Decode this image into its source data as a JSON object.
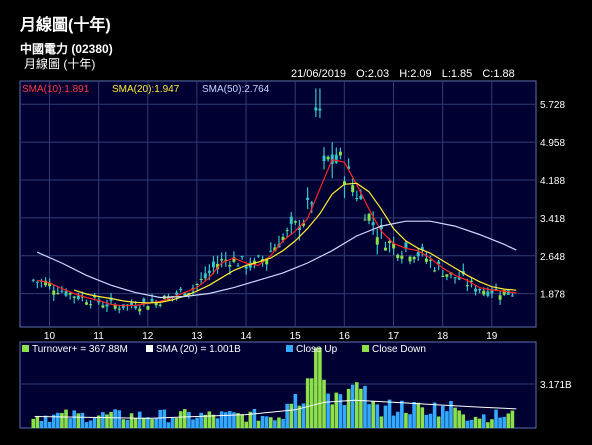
{
  "header": {
    "title": "月線圖(十年)",
    "stock": "中國電力 (02380)",
    "period": "月線圖 (十年)"
  },
  "ohlc": {
    "date": "21/06/2019",
    "open": "O:2.03",
    "high": "H:2.09",
    "low": "L:1.85",
    "close": "C:1.88"
  },
  "colors": {
    "panel_bg": "#000033",
    "grid": "#303c74",
    "price_bar": "#34c6c6",
    "up_vol": "#33a9ff",
    "down_vol": "#8ce04a",
    "sma10": "#ff2222",
    "sma20": "#ffee33",
    "sma50": "#cfd8ff"
  },
  "chart_data": [
    {
      "type": "line",
      "legend": [
        {
          "label": "SMA(10):1.891",
          "color": "#ff3b3b"
        },
        {
          "label": "SMA(20):1.947",
          "color": "#ffeb33"
        },
        {
          "label": "SMA(50):2.764",
          "color": "#c9d6ff"
        }
      ],
      "x_ticks": [
        "10",
        "11",
        "12",
        "13",
        "14",
        "15",
        "16",
        "17",
        "18",
        "19"
      ],
      "y_ticks": [
        "1.878",
        "2.648",
        "3.418",
        "4.188",
        "4.958",
        "5.728"
      ],
      "ylim": [
        1.2,
        6.2
      ],
      "y_scale": "linear",
      "grid": true,
      "series": [
        {
          "name": "SMA(10)",
          "values": [
            [
              2009.75,
              2.15
            ],
            [
              2010.0,
              2.1
            ],
            [
              2010.25,
              1.98
            ],
            [
              2010.5,
              1.88
            ],
            [
              2010.75,
              1.8
            ],
            [
              2011.0,
              1.74
            ],
            [
              2011.25,
              1.66
            ],
            [
              2011.5,
              1.63
            ],
            [
              2011.75,
              1.64
            ],
            [
              2012.0,
              1.68
            ],
            [
              2012.25,
              1.72
            ],
            [
              2012.5,
              1.8
            ],
            [
              2012.75,
              1.9
            ],
            [
              2013.0,
              2.0
            ],
            [
              2013.25,
              2.2
            ],
            [
              2013.5,
              2.5
            ],
            [
              2013.75,
              2.6
            ],
            [
              2014.0,
              2.5
            ],
            [
              2014.25,
              2.45
            ],
            [
              2014.5,
              2.65
            ],
            [
              2014.75,
              2.95
            ],
            [
              2015.0,
              3.15
            ],
            [
              2015.25,
              3.4
            ],
            [
              2015.5,
              4.0
            ],
            [
              2015.75,
              4.6
            ],
            [
              2016.0,
              4.55
            ],
            [
              2016.25,
              4.1
            ],
            [
              2016.5,
              3.6
            ],
            [
              2016.75,
              3.15
            ],
            [
              2017.0,
              2.9
            ],
            [
              2017.25,
              2.8
            ],
            [
              2017.5,
              2.75
            ],
            [
              2017.75,
              2.6
            ],
            [
              2018.0,
              2.4
            ],
            [
              2018.25,
              2.25
            ],
            [
              2018.5,
              2.15
            ],
            [
              2018.75,
              2.0
            ],
            [
              2019.0,
              1.95
            ],
            [
              2019.25,
              1.93
            ],
            [
              2019.5,
              1.891
            ]
          ]
        },
        {
          "name": "SMA(20)",
          "values": [
            [
              2010.5,
              1.95
            ],
            [
              2010.75,
              1.87
            ],
            [
              2011.0,
              1.82
            ],
            [
              2011.25,
              1.78
            ],
            [
              2011.5,
              1.73
            ],
            [
              2011.75,
              1.7
            ],
            [
              2012.0,
              1.69
            ],
            [
              2012.25,
              1.7
            ],
            [
              2012.5,
              1.75
            ],
            [
              2012.75,
              1.83
            ],
            [
              2013.0,
              1.93
            ],
            [
              2013.25,
              2.05
            ],
            [
              2013.5,
              2.2
            ],
            [
              2013.75,
              2.35
            ],
            [
              2014.0,
              2.45
            ],
            [
              2014.25,
              2.52
            ],
            [
              2014.5,
              2.6
            ],
            [
              2014.75,
              2.75
            ],
            [
              2015.0,
              2.95
            ],
            [
              2015.25,
              3.2
            ],
            [
              2015.5,
              3.5
            ],
            [
              2015.75,
              3.9
            ],
            [
              2016.0,
              4.1
            ],
            [
              2016.25,
              4.12
            ],
            [
              2016.5,
              3.95
            ],
            [
              2016.75,
              3.6
            ],
            [
              2017.0,
              3.2
            ],
            [
              2017.25,
              2.95
            ],
            [
              2017.5,
              2.8
            ],
            [
              2017.75,
              2.7
            ],
            [
              2018.0,
              2.55
            ],
            [
              2018.25,
              2.4
            ],
            [
              2018.5,
              2.25
            ],
            [
              2018.75,
              2.12
            ],
            [
              2019.0,
              2.02
            ],
            [
              2019.25,
              1.97
            ],
            [
              2019.5,
              1.947
            ]
          ]
        },
        {
          "name": "SMA(50)",
          "values": [
            [
              2009.75,
              2.72
            ],
            [
              2010.25,
              2.5
            ],
            [
              2010.75,
              2.25
            ],
            [
              2011.25,
              2.05
            ],
            [
              2011.75,
              1.9
            ],
            [
              2012.25,
              1.8
            ],
            [
              2012.75,
              1.82
            ],
            [
              2013.25,
              1.88
            ],
            [
              2013.75,
              2.0
            ],
            [
              2014.25,
              2.15
            ],
            [
              2014.75,
              2.3
            ],
            [
              2015.25,
              2.5
            ],
            [
              2015.75,
              2.75
            ],
            [
              2016.25,
              3.05
            ],
            [
              2016.75,
              3.25
            ],
            [
              2017.25,
              3.35
            ],
            [
              2017.75,
              3.35
            ],
            [
              2018.25,
              3.25
            ],
            [
              2018.75,
              3.08
            ],
            [
              2019.25,
              2.88
            ],
            [
              2019.5,
              2.764
            ]
          ]
        }
      ]
    },
    {
      "type": "bar",
      "legend": [
        {
          "label": "Turnover+ = 367.88M",
          "color": "#8ce04a"
        },
        {
          "label": "SMA (20) = 1.001B",
          "color": "#ffffff"
        },
        {
          "label": "Close Up",
          "color": "#33a9ff"
        },
        {
          "label": "Close Down",
          "color": "#8ce04a"
        }
      ],
      "y_ticks": [
        "3.171B"
      ],
      "latest_turnover": "367.88M"
    }
  ]
}
